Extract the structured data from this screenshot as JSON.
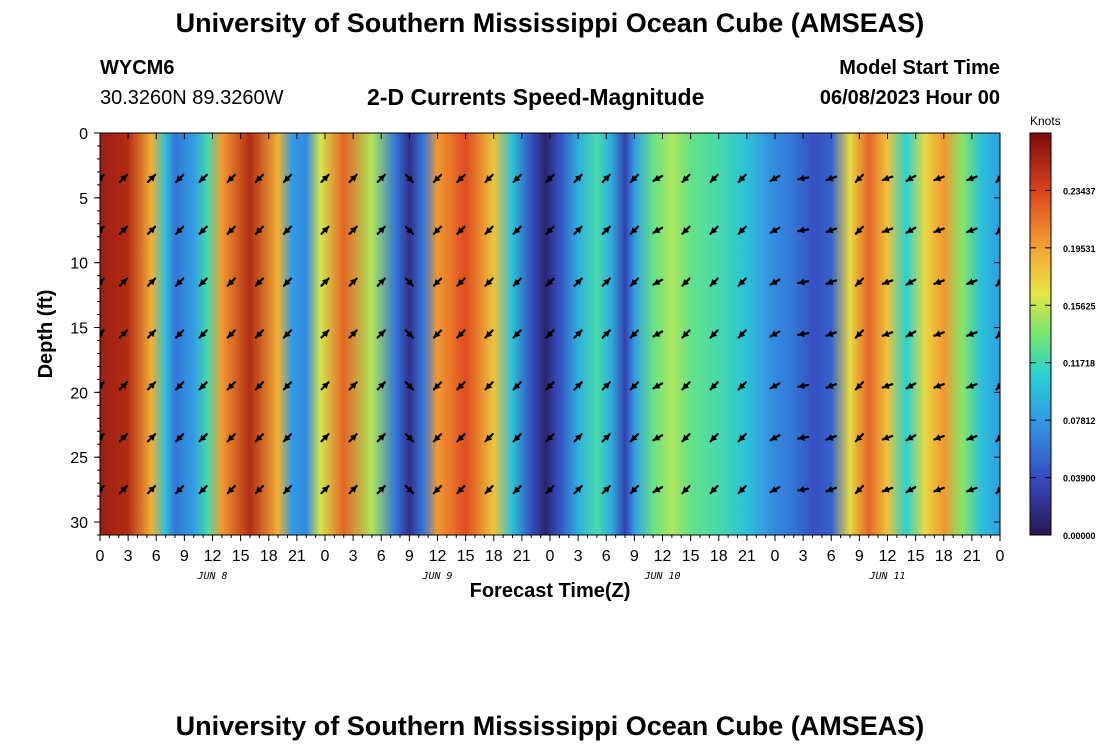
{
  "header": {
    "title": "University of Southern Mississippi Ocean Cube (AMSEAS)",
    "station_id": "WYCM6",
    "station_coords": "30.3260N  89.3260W",
    "model_start_label": "Model Start Time",
    "model_start_value": "06/08/2023 Hour 00",
    "subtitle": "2-D Currents Speed-Magnitude"
  },
  "footer": {
    "title": "University of Southern Mississippi Ocean Cube (AMSEAS)"
  },
  "chart_data": {
    "type": "heatmap",
    "title": "2-D Currents Speed-Magnitude",
    "xlabel": "Forecast Time(Z)",
    "ylabel": "Depth (ft)",
    "xlim": [
      0,
      96
    ],
    "ylim": [
      31,
      0
    ],
    "x_tick_labels": [
      "0",
      "3",
      "6",
      "9",
      "12",
      "15",
      "18",
      "21",
      "0",
      "3",
      "6",
      "9",
      "12",
      "15",
      "18",
      "21",
      "0",
      "3",
      "6",
      "9",
      "12",
      "15",
      "18",
      "21",
      "0",
      "3",
      "6",
      "9",
      "12",
      "15",
      "18",
      "21",
      "0"
    ],
    "y_ticks": [
      0,
      5,
      10,
      15,
      20,
      25,
      30
    ],
    "day_labels": [
      {
        "hour": 12,
        "label": "JUN 8"
      },
      {
        "hour": 36,
        "label": "JUN 9"
      },
      {
        "hour": 60,
        "label": "JUN 10"
      },
      {
        "hour": 84,
        "label": "JUN 11"
      }
    ],
    "colorbar": {
      "label": "Knots",
      "ticks": [
        0.0,
        0.039,
        0.07812,
        0.11718,
        0.15625,
        0.19531,
        0.23437
      ],
      "tick_labels": [
        "0.00000",
        "0.03900",
        "0.07812",
        "0.11718",
        "0.15625",
        "0.19531",
        "0.23437"
      ],
      "range": [
        0.0,
        0.2734
      ]
    },
    "speed_columns": [
      {
        "hour": 0,
        "speed": 0.26
      },
      {
        "hour": 3,
        "speed": 0.25
      },
      {
        "hour": 5.5,
        "speed": 0.19
      },
      {
        "hour": 7,
        "speed": 0.1
      },
      {
        "hour": 8,
        "speed": 0.06
      },
      {
        "hour": 10,
        "speed": 0.08
      },
      {
        "hour": 11.5,
        "speed": 0.12
      },
      {
        "hour": 13,
        "speed": 0.2
      },
      {
        "hour": 16,
        "speed": 0.25
      },
      {
        "hour": 19,
        "speed": 0.19
      },
      {
        "hour": 20.5,
        "speed": 0.08
      },
      {
        "hour": 22,
        "speed": 0.07
      },
      {
        "hour": 23.5,
        "speed": 0.16
      },
      {
        "hour": 26,
        "speed": 0.22
      },
      {
        "hour": 29,
        "speed": 0.15
      },
      {
        "hour": 31.5,
        "speed": 0.06
      },
      {
        "hour": 33,
        "speed": 0.02
      },
      {
        "hour": 34.5,
        "speed": 0.06
      },
      {
        "hour": 36,
        "speed": 0.2
      },
      {
        "hour": 39,
        "speed": 0.23
      },
      {
        "hour": 42,
        "speed": 0.18
      },
      {
        "hour": 44,
        "speed": 0.1
      },
      {
        "hour": 46,
        "speed": 0.04
      },
      {
        "hour": 47.5,
        "speed": 0.01
      },
      {
        "hour": 49,
        "speed": 0.04
      },
      {
        "hour": 51,
        "speed": 0.09
      },
      {
        "hour": 53,
        "speed": 0.12
      },
      {
        "hour": 54.5,
        "speed": 0.09
      },
      {
        "hour": 56,
        "speed": 0.03
      },
      {
        "hour": 57,
        "speed": 0.08
      },
      {
        "hour": 59,
        "speed": 0.13
      },
      {
        "hour": 61,
        "speed": 0.15
      },
      {
        "hour": 63,
        "speed": 0.13
      },
      {
        "hour": 66,
        "speed": 0.12
      },
      {
        "hour": 69,
        "speed": 0.1
      },
      {
        "hour": 72,
        "speed": 0.07
      },
      {
        "hour": 74,
        "speed": 0.06
      },
      {
        "hour": 76,
        "speed": 0.04
      },
      {
        "hour": 78,
        "speed": 0.05
      },
      {
        "hour": 80,
        "speed": 0.17
      },
      {
        "hour": 82,
        "speed": 0.22
      },
      {
        "hour": 84,
        "speed": 0.18
      },
      {
        "hour": 86,
        "speed": 0.11
      },
      {
        "hour": 88,
        "speed": 0.17
      },
      {
        "hour": 90,
        "speed": 0.2
      },
      {
        "hour": 92,
        "speed": 0.14
      },
      {
        "hour": 94,
        "speed": 0.1
      },
      {
        "hour": 96,
        "speed": 0.08
      }
    ],
    "arrow_depths_ft": [
      3.5,
      7.5,
      11.5,
      15.5,
      19.5,
      23.5,
      27.5
    ],
    "arrow_hours": [
      0,
      2.5,
      5.5,
      8.5,
      11,
      14,
      17,
      20,
      24,
      27,
      30,
      33,
      36,
      38.5,
      41.5,
      44.5,
      48,
      51,
      54,
      57,
      59.5,
      62.5,
      65.5,
      68.5,
      72,
      75,
      78,
      81,
      84,
      86.5,
      89.5,
      93,
      96
    ],
    "arrow_directions_deg": [
      45,
      45,
      45,
      225,
      225,
      225,
      225,
      225,
      45,
      45,
      45,
      315,
      225,
      225,
      225,
      225,
      225,
      45,
      45,
      225,
      210,
      225,
      225,
      225,
      210,
      190,
      200,
      225,
      200,
      210,
      200,
      200,
      225
    ]
  }
}
